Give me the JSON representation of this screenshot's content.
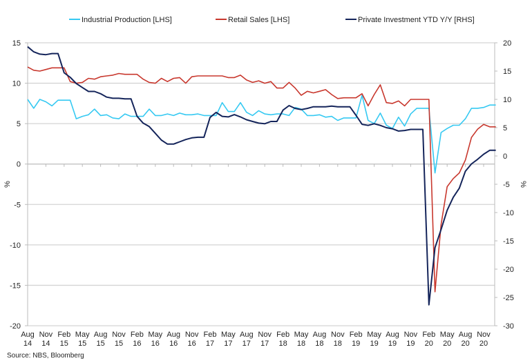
{
  "chart_data": {
    "type": "line",
    "title": "",
    "source": "Source: NBS, Bloomberg",
    "ylabel_left": "%",
    "ylabel_right": "%",
    "ylim_left": [
      -20,
      15
    ],
    "yticks_left": [
      15,
      10,
      5,
      0,
      -5,
      -10,
      -15,
      -20
    ],
    "ylim_right": [
      -30,
      20
    ],
    "yticks_right": [
      20,
      15,
      10,
      5,
      0,
      -5,
      -10,
      -15,
      -20,
      -25,
      -30
    ],
    "grid": true,
    "legend_position": "top",
    "x_tick_labels": [
      [
        "Aug",
        "14"
      ],
      [
        "Nov",
        "14"
      ],
      [
        "Feb",
        "15"
      ],
      [
        "May",
        "15"
      ],
      [
        "Aug",
        "15"
      ],
      [
        "Nov",
        "15"
      ],
      [
        "Feb",
        "16"
      ],
      [
        "May",
        "16"
      ],
      [
        "Aug",
        "16"
      ],
      [
        "Nov",
        "16"
      ],
      [
        "Feb",
        "17"
      ],
      [
        "May",
        "17"
      ],
      [
        "Aug",
        "17"
      ],
      [
        "Nov",
        "17"
      ],
      [
        "Feb",
        "18"
      ],
      [
        "May",
        "18"
      ],
      [
        "Aug",
        "18"
      ],
      [
        "Nov",
        "18"
      ],
      [
        "Feb",
        "19"
      ],
      [
        "May",
        "19"
      ],
      [
        "Aug",
        "19"
      ],
      [
        "Nov",
        "19"
      ],
      [
        "Feb",
        "20"
      ],
      [
        "May",
        "20"
      ],
      [
        "Aug",
        "20"
      ],
      [
        "Nov",
        "20"
      ]
    ],
    "x_start": "Aug 2014",
    "x_frequency": "monthly",
    "series": [
      {
        "name": "Industrial Production [LHS]",
        "axis": "left",
        "color": "#35c9f2",
        "values": [
          8.0,
          6.9,
          8.0,
          7.7,
          7.2,
          7.9,
          7.9,
          7.9,
          5.6,
          5.9,
          6.1,
          6.8,
          6.0,
          6.1,
          5.7,
          5.6,
          6.2,
          5.9,
          5.9,
          5.9,
          6.8,
          6.0,
          6.0,
          6.2,
          6.0,
          6.3,
          6.1,
          6.1,
          6.2,
          6.0,
          6.0,
          6.0,
          7.6,
          6.5,
          6.5,
          7.6,
          6.4,
          6.0,
          6.6,
          6.2,
          6.1,
          6.2,
          6.2,
          6.0,
          7.0,
          6.8,
          6.0,
          6.0,
          6.1,
          5.8,
          5.9,
          5.4,
          5.7,
          5.7,
          5.7,
          8.5,
          5.4,
          5.0,
          6.3,
          4.8,
          4.4,
          5.8,
          4.7,
          6.2,
          6.9,
          6.9,
          6.9,
          -1.1,
          3.9,
          4.4,
          4.8,
          4.8,
          5.6,
          6.9,
          6.9,
          7.0,
          7.3,
          7.3
        ]
      },
      {
        "name": "Retail Sales [LHS]",
        "axis": "left",
        "color": "#c8372d",
        "values": [
          12.0,
          11.6,
          11.5,
          11.7,
          11.9,
          11.9,
          11.9,
          10.2,
          10.0,
          10.1,
          10.6,
          10.5,
          10.8,
          10.9,
          11.0,
          11.2,
          11.1,
          11.1,
          11.1,
          10.5,
          10.1,
          10.0,
          10.6,
          10.2,
          10.6,
          10.7,
          10.0,
          10.8,
          10.9,
          10.9,
          10.9,
          10.9,
          10.9,
          10.7,
          10.7,
          11.0,
          10.4,
          10.1,
          10.3,
          10.0,
          10.2,
          9.4,
          9.4,
          10.1,
          9.4,
          8.5,
          9.0,
          8.8,
          9.0,
          9.2,
          8.6,
          8.1,
          8.2,
          8.2,
          8.2,
          8.7,
          7.2,
          8.6,
          9.8,
          7.6,
          7.5,
          7.8,
          7.2,
          8.0,
          8.0,
          8.0,
          8.0,
          -15.8,
          -7.5,
          -2.8,
          -1.8,
          -1.1,
          0.5,
          3.3,
          4.3,
          4.9,
          4.6,
          4.6
        ]
      },
      {
        "name": "Private Investment YTD Y/Y [RHS]",
        "axis": "right",
        "color": "#14245a",
        "values": [
          19.3,
          18.4,
          18.0,
          17.9,
          18.1,
          18.1,
          14.7,
          13.9,
          12.8,
          12.1,
          11.4,
          11.4,
          11.0,
          10.4,
          10.2,
          10.2,
          10.1,
          10.1,
          7.0,
          5.8,
          5.2,
          4.0,
          2.8,
          2.1,
          2.1,
          2.5,
          2.9,
          3.2,
          3.3,
          3.3,
          6.8,
          7.7,
          7.0,
          6.9,
          7.3,
          6.9,
          6.4,
          6.1,
          5.8,
          5.7,
          6.1,
          6.1,
          8.1,
          8.9,
          8.4,
          8.2,
          8.4,
          8.7,
          8.7,
          8.7,
          8.8,
          8.7,
          8.7,
          8.7,
          7.2,
          5.6,
          5.4,
          5.7,
          5.4,
          5.0,
          4.8,
          4.4,
          4.5,
          4.7,
          4.7,
          4.7,
          -26.3,
          -16.2,
          -13.0,
          -9.6,
          -7.3,
          -5.7,
          -2.7,
          -1.4,
          -0.6,
          0.3,
          1.0,
          1.0
        ]
      }
    ]
  }
}
